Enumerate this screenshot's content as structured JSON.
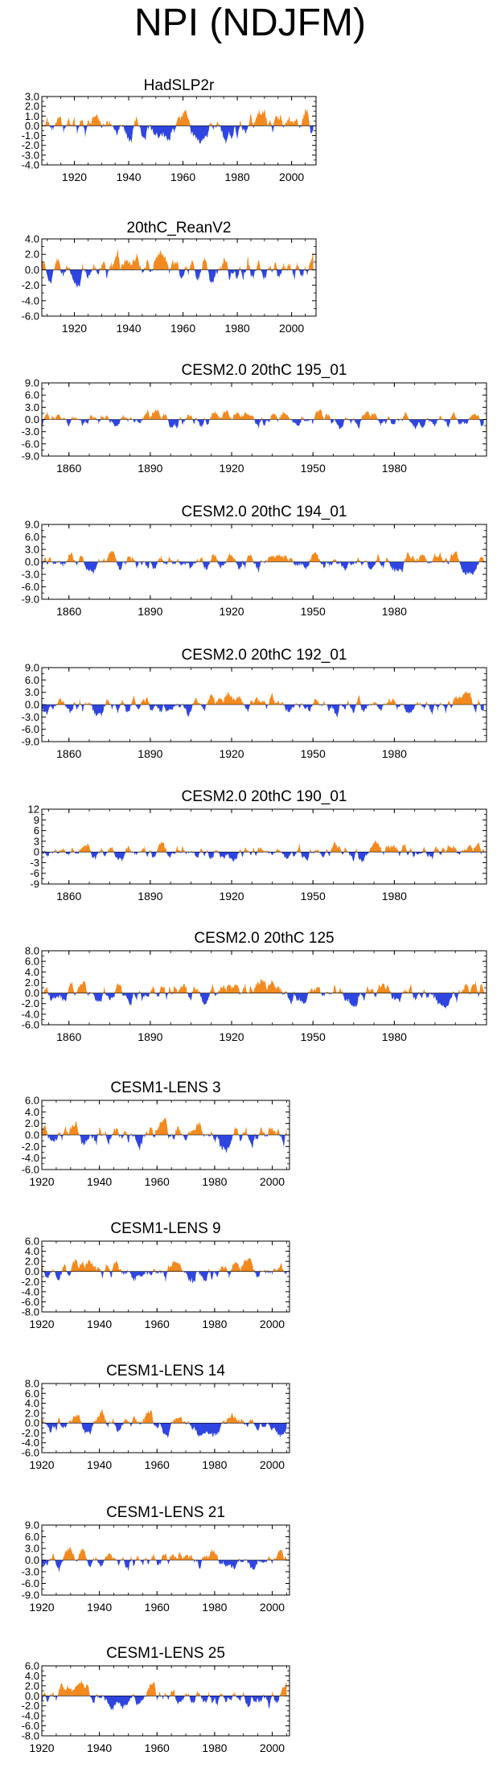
{
  "figure_title": "NPI (NDJFM)",
  "colors": {
    "positive": "#f28a1f",
    "negative": "#2f45e0",
    "axis": "#000000"
  },
  "chart_data": [
    {
      "type": "area",
      "title": "HadSLP2r",
      "xlim": [
        1908,
        2009
      ],
      "ylim": [
        -4.0,
        3.0
      ],
      "yticks": [
        "3.0",
        "2.0",
        "1.0",
        "0.0",
        "-1.0",
        "-2.0",
        "-3.0",
        "-4.0"
      ],
      "xticks": [
        "1920",
        "1940",
        "1960",
        "1980",
        "2000"
      ],
      "seed": 11,
      "scale": 1.2,
      "nyears": 101
    },
    {
      "type": "area",
      "title": "20thC_ReanV2",
      "xlim": [
        1908,
        2009
      ],
      "ylim": [
        -6.0,
        4.0
      ],
      "yticks": [
        "4.0",
        "2.0",
        "0.0",
        "-2.0",
        "-4.0",
        "-6.0"
      ],
      "xticks": [
        "1920",
        "1940",
        "1960",
        "1980",
        "2000"
      ],
      "seed": 23,
      "scale": 1.7,
      "nyears": 101
    },
    {
      "type": "area",
      "title": "CESM2.0 20thC 195_01",
      "xlim": [
        1850,
        2014
      ],
      "ylim": [
        -9.0,
        9.0
      ],
      "yticks": [
        "9.0",
        "6.0",
        "3.0",
        "0.0",
        "-3.0",
        "-6.0",
        "-9.0"
      ],
      "xticks": [
        "1860",
        "1890",
        "1920",
        "1950",
        "1980"
      ],
      "seed": 37,
      "scale": 1.8,
      "nyears": 164
    },
    {
      "type": "area",
      "title": "CESM2.0 20thC 194_01",
      "xlim": [
        1850,
        2014
      ],
      "ylim": [
        -9.0,
        9.0
      ],
      "yticks": [
        "9.0",
        "6.0",
        "3.0",
        "0.0",
        "-3.0",
        "-6.0",
        "-9.0"
      ],
      "xticks": [
        "1860",
        "1890",
        "1920",
        "1950",
        "1980"
      ],
      "seed": 41,
      "scale": 2.0,
      "nyears": 164
    },
    {
      "type": "area",
      "title": "CESM2.0 20thC 192_01",
      "xlim": [
        1850,
        2014
      ],
      "ylim": [
        -9.0,
        9.0
      ],
      "yticks": [
        "9.0",
        "6.0",
        "3.0",
        "0.0",
        "-3.0",
        "-6.0",
        "-9.0"
      ],
      "xticks": [
        "1860",
        "1890",
        "1920",
        "1950",
        "1980"
      ],
      "seed": 53,
      "scale": 2.0,
      "nyears": 164
    },
    {
      "type": "area",
      "title": "CESM2.0 20thC 190_01",
      "xlim": [
        1850,
        2014
      ],
      "ylim": [
        -9,
        12
      ],
      "yticks": [
        "12",
        "9",
        "6",
        "3",
        "0",
        "-3",
        "-6",
        "-9"
      ],
      "xticks": [
        "1860",
        "1890",
        "1920",
        "1950",
        "1980"
      ],
      "seed": 67,
      "scale": 2.2,
      "nyears": 164
    },
    {
      "type": "area",
      "title": "CESM2.0 20thC 125",
      "xlim": [
        1850,
        2014
      ],
      "ylim": [
        -6.0,
        8.0
      ],
      "yticks": [
        "8.0",
        "6.0",
        "4.0",
        "2.0",
        "0.0",
        "-2.0",
        "-4.0",
        "-6.0"
      ],
      "xticks": [
        "1860",
        "1890",
        "1920",
        "1950",
        "1980"
      ],
      "seed": 71,
      "scale": 1.8,
      "nyears": 164
    },
    {
      "type": "area",
      "title": "CESM1-LENS 3",
      "xlim": [
        1920,
        2006
      ],
      "ylim": [
        -6.0,
        6.0
      ],
      "yticks": [
        "6.0",
        "4.0",
        "2.0",
        "0.0",
        "-2.0",
        "-4.0",
        "-6.0"
      ],
      "xticks": [
        "1920",
        "1940",
        "1960",
        "1980",
        "2000"
      ],
      "seed": 83,
      "scale": 2.0,
      "nyears": 86
    },
    {
      "type": "area",
      "title": "CESM1-LENS 9",
      "xlim": [
        1920,
        2006
      ],
      "ylim": [
        -8.0,
        6.0
      ],
      "yticks": [
        "6.0",
        "4.0",
        "2.0",
        "0.0",
        "-2.0",
        "-4.0",
        "-6.0",
        "-8.0"
      ],
      "xticks": [
        "1920",
        "1940",
        "1960",
        "1980",
        "2000"
      ],
      "seed": 97,
      "scale": 2.0,
      "nyears": 86
    },
    {
      "type": "area",
      "title": "CESM1-LENS 14",
      "xlim": [
        1920,
        2006
      ],
      "ylim": [
        -6.0,
        8.0
      ],
      "yticks": [
        "8.0",
        "6.0",
        "4.0",
        "2.0",
        "0.0",
        "-2.0",
        "-4.0",
        "-6.0"
      ],
      "xticks": [
        "1920",
        "1940",
        "1960",
        "1980",
        "2000"
      ],
      "seed": 101,
      "scale": 2.0,
      "nyears": 86
    },
    {
      "type": "area",
      "title": "CESM1-LENS 21",
      "xlim": [
        1920,
        2006
      ],
      "ylim": [
        -9.0,
        9.0
      ],
      "yticks": [
        "9.0",
        "6.0",
        "3.0",
        "0.0",
        "-3.0",
        "-6.0",
        "-9.0"
      ],
      "xticks": [
        "1920",
        "1940",
        "1960",
        "1980",
        "2000"
      ],
      "seed": 113,
      "scale": 2.2,
      "nyears": 86
    },
    {
      "type": "area",
      "title": "CESM1-LENS 25",
      "xlim": [
        1920,
        2006
      ],
      "ylim": [
        -8.0,
        6.0
      ],
      "yticks": [
        "6.0",
        "4.0",
        "2.0",
        "0.0",
        "-2.0",
        "-4.0",
        "-6.0",
        "-8.0"
      ],
      "xticks": [
        "1920",
        "1940",
        "1960",
        "1980",
        "2000"
      ],
      "seed": 127,
      "scale": 2.0,
      "nyears": 86
    }
  ]
}
